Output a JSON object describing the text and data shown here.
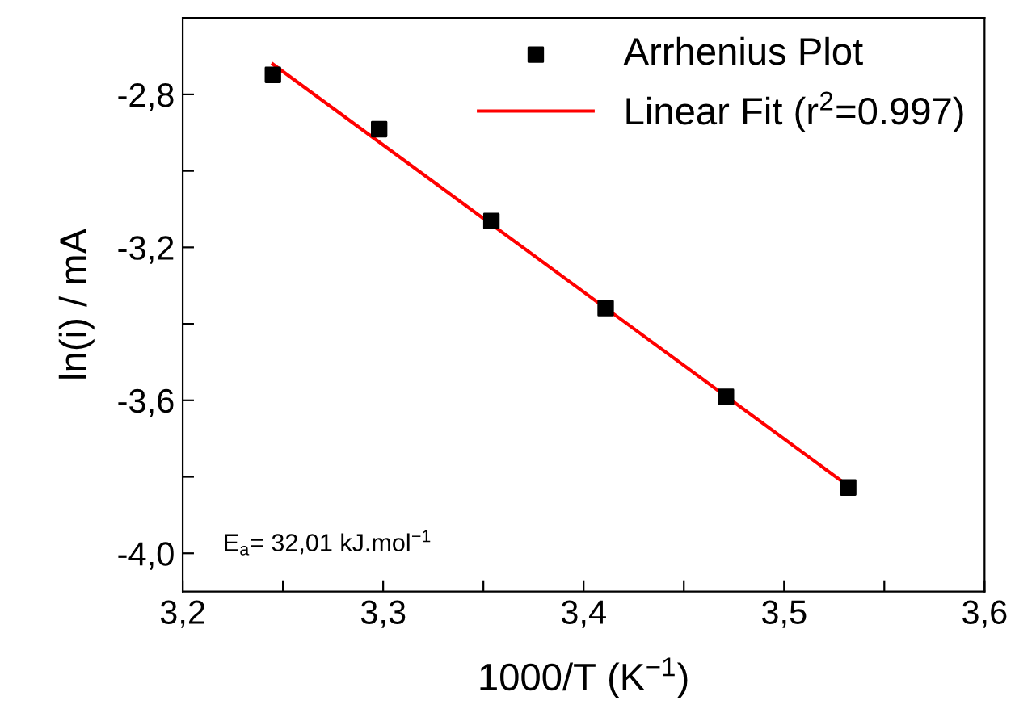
{
  "chart_data": {
    "type": "scatter",
    "xlabel": "1000/T (K$^{−1}$)",
    "ylabel": "ln(i) / mA",
    "xlim": [
      3.2,
      3.6
    ],
    "ylim": [
      -4.1,
      -2.6
    ],
    "xticks": [
      {
        "value": 3.2,
        "label": "3,2"
      },
      {
        "value": 3.25,
        "label": null
      },
      {
        "value": 3.3,
        "label": "3,3"
      },
      {
        "value": 3.35,
        "label": null
      },
      {
        "value": 3.4,
        "label": "3,4"
      },
      {
        "value": 3.45,
        "label": null
      },
      {
        "value": 3.5,
        "label": "3,5"
      },
      {
        "value": 3.55,
        "label": null
      },
      {
        "value": 3.6,
        "label": "3,6"
      }
    ],
    "yticks": [
      {
        "value": -4.0,
        "label": "-4,0"
      },
      {
        "value": -3.8,
        "label": null
      },
      {
        "value": -3.6,
        "label": "-3,6"
      },
      {
        "value": -3.4,
        "label": null
      },
      {
        "value": -3.2,
        "label": "-3,2"
      },
      {
        "value": -3.0,
        "label": null
      },
      {
        "value": -2.8,
        "label": "-2,8"
      }
    ],
    "legend": "top right",
    "grid": false,
    "series": [
      {
        "name": "Arrhenius Plot",
        "marker": "square",
        "color": "#000000",
        "x": [
          3.245,
          3.298,
          3.354,
          3.411,
          3.471,
          3.532
        ],
        "values": [
          -2.749,
          -2.891,
          -3.131,
          -3.359,
          -3.591,
          -3.828
        ]
      },
      {
        "name": "Linear Fit (r$^{2}$=0.997)",
        "type": "line",
        "marker": "none",
        "line_style": "solid",
        "color": "#ff0000",
        "x": [
          3.245,
          3.53
        ],
        "values": [
          -2.721,
          -3.816
        ]
      }
    ],
    "annotations": [
      {
        "text": "E$_{a}$= 32,01 kJ.mol$^{−1}$"
      }
    ]
  }
}
